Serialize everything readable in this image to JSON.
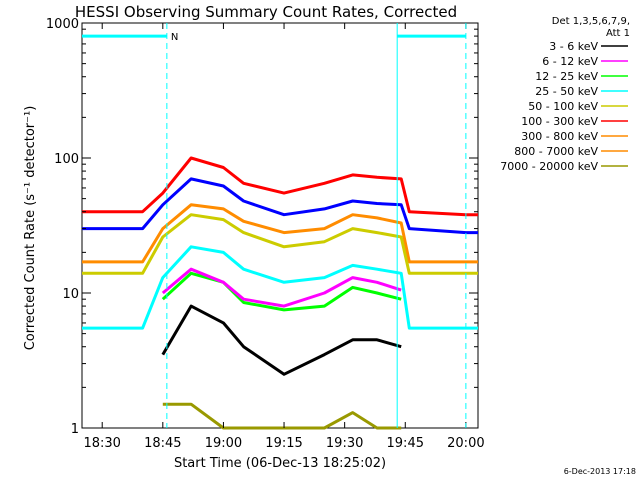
{
  "chart_data": {
    "type": "line",
    "title": "HESSI Observing Summary Count Rates, Corrected",
    "xlabel": "Start Time (06-Dec-13 18:25:02)",
    "ylabel": "Corrected Count Rate (s⁻¹ detector⁻¹)",
    "yscale": "log",
    "ylim": [
      1,
      1000
    ],
    "xlim": [
      "18:25",
      "20:03"
    ],
    "x_ticks": [
      "18:30",
      "18:45",
      "19:00",
      "19:15",
      "19:30",
      "19:45",
      "20:00"
    ],
    "y_ticks": [
      "1",
      "10",
      "100",
      "1000"
    ],
    "legend_header": [
      "Det 1,3,5,6,7,9,",
      "Att 1"
    ],
    "legend_position": "right",
    "flag_label": "N",
    "footer_date": "6-Dec-2013 17:18",
    "x": [
      "18:25",
      "18:40",
      "18:45",
      "18:52",
      "19:00",
      "19:05",
      "19:15",
      "19:25",
      "19:32",
      "19:38",
      "19:44",
      "19:46",
      "20:00",
      "20:03"
    ],
    "series": [
      {
        "name": "3 - 6 keV",
        "color": "#000000",
        "values": [
          null,
          null,
          3.5,
          8,
          6,
          4,
          2.5,
          3.5,
          4.5,
          4.5,
          4,
          null,
          null,
          null
        ]
      },
      {
        "name": "6 - 12 keV",
        "color": "#ff00ff",
        "values": [
          null,
          null,
          10,
          15,
          12,
          9,
          8,
          10,
          13,
          12,
          10.5,
          null,
          null,
          null
        ]
      },
      {
        "name": "12 - 25 keV",
        "color": "#00ff00",
        "values": [
          null,
          null,
          9,
          14,
          12,
          8.5,
          7.5,
          8,
          11,
          10,
          9,
          null,
          null,
          null
        ]
      },
      {
        "name": "25 - 50 keV",
        "color": "#00ffff",
        "values": [
          5.5,
          5.5,
          13,
          22,
          20,
          15,
          12,
          13,
          16,
          15,
          14,
          5.5,
          5.5,
          5.5
        ]
      },
      {
        "name": "50 - 100 keV",
        "color": "#cccc00",
        "values": [
          14,
          14,
          26,
          38,
          35,
          28,
          22,
          24,
          30,
          28,
          26,
          14,
          14,
          14
        ]
      },
      {
        "name": "100 - 300 keV",
        "color": "#ff0000",
        "values": [
          40,
          40,
          55,
          100,
          85,
          65,
          55,
          65,
          75,
          72,
          70,
          40,
          38,
          38
        ]
      },
      {
        "name": "300 - 800 keV",
        "color": "#ff8c00",
        "values": [
          17,
          17,
          30,
          45,
          42,
          34,
          28,
          30,
          38,
          36,
          33,
          17,
          17,
          17
        ]
      },
      {
        "name": "800 - 7000 keV",
        "color": "#ff8c00",
        "values": [
          null,
          null,
          null,
          null,
          null,
          null,
          null,
          null,
          null,
          null,
          null,
          null,
          null,
          null
        ]
      },
      {
        "name": "7000 - 20000 keV",
        "color": "#999900",
        "values": [
          null,
          null,
          1.5,
          1.5,
          1,
          1,
          1,
          1,
          1.3,
          1,
          1,
          null,
          null,
          null
        ]
      },
      {
        "name": "",
        "color": "#0000ff",
        "values": [
          30,
          30,
          45,
          70,
          62,
          48,
          38,
          42,
          48,
          46,
          45,
          30,
          28,
          28
        ]
      }
    ],
    "flag_color": "#00ffff"
  }
}
